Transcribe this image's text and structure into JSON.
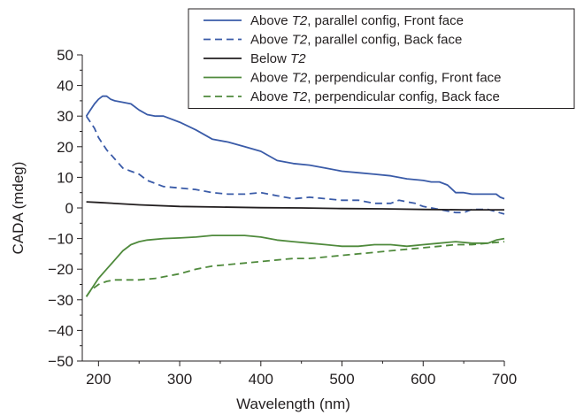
{
  "chart_data": {
    "type": "line",
    "title": "",
    "xlabel": "Wavelength (nm)",
    "ylabel": "CADA (mdeg)",
    "xlim": [
      180,
      700
    ],
    "ylim": [
      -50,
      50
    ],
    "xticks": [
      200,
      300,
      400,
      500,
      600,
      700
    ],
    "yticks": [
      50,
      40,
      30,
      20,
      10,
      0,
      -10,
      -20,
      -30,
      -40,
      -50
    ],
    "ytick_labels": [
      "50",
      "40",
      "30",
      "20",
      "10",
      "0",
      "−10",
      "−20",
      "−30",
      "−40",
      "−50"
    ],
    "grid": false,
    "legend_placement": "top-right",
    "series": [
      {
        "name": "Above T2, parallel config, Front face",
        "name_parts": [
          "Above ",
          "T2",
          ", parallel config, Front face"
        ],
        "color": "#3a5ba8",
        "dash": "solid",
        "x": [
          185,
          190,
          195,
          200,
          205,
          210,
          215,
          220,
          230,
          240,
          250,
          260,
          270,
          280,
          300,
          320,
          340,
          360,
          380,
          400,
          420,
          440,
          460,
          480,
          500,
          520,
          540,
          560,
          580,
          600,
          610,
          620,
          630,
          640,
          650,
          660,
          670,
          680,
          690,
          695,
          700
        ],
        "y": [
          30,
          32,
          34,
          35.5,
          36.5,
          36.5,
          35.5,
          35,
          34.5,
          34,
          32,
          30.5,
          30,
          30,
          28,
          25.5,
          22.5,
          21.5,
          20,
          18.5,
          15.5,
          14.5,
          14,
          13,
          12,
          11.5,
          11,
          10.5,
          9.5,
          9,
          8.5,
          8.5,
          7.5,
          5,
          5,
          4.5,
          4.5,
          4.5,
          4.5,
          3.5,
          3
        ]
      },
      {
        "name": "Above T2, parallel config, Back face",
        "name_parts": [
          "Above ",
          "T2",
          ", parallel config, Back face"
        ],
        "color": "#3a5ba8",
        "dash": "dashed",
        "x": [
          185,
          190,
          195,
          200,
          210,
          220,
          230,
          240,
          250,
          260,
          270,
          280,
          300,
          320,
          340,
          360,
          380,
          400,
          420,
          440,
          460,
          480,
          500,
          520,
          540,
          560,
          570,
          580,
          590,
          600,
          620,
          640,
          650,
          660,
          680,
          700
        ],
        "y": [
          30,
          28,
          26,
          23,
          19,
          16,
          13,
          12,
          11,
          9,
          8,
          7,
          6.5,
          6,
          5,
          4.5,
          4.5,
          5,
          4,
          3,
          3.5,
          3,
          2.5,
          2.5,
          1.5,
          1.5,
          2.5,
          2,
          1.5,
          0.5,
          -0.5,
          -1.5,
          -1.5,
          -0.5,
          -0.5,
          -2
        ]
      },
      {
        "name": "Below T2",
        "name_parts": [
          "Below ",
          "T2",
          ""
        ],
        "color": "#231f20",
        "dash": "solid",
        "x": [
          185,
          200,
          250,
          300,
          350,
          400,
          450,
          500,
          550,
          600,
          650,
          700
        ],
        "y": [
          2,
          1.8,
          1,
          0.5,
          0.3,
          0.1,
          0,
          -0.2,
          -0.3,
          -0.5,
          -0.6,
          -0.6
        ]
      },
      {
        "name": "Above T2, perpendicular config, Front face",
        "name_parts": [
          "Above ",
          "T2",
          ", perpendicular config, Front face"
        ],
        "color": "#4f8a3c",
        "dash": "solid",
        "x": [
          185,
          190,
          200,
          210,
          220,
          230,
          240,
          250,
          260,
          280,
          300,
          320,
          340,
          360,
          380,
          400,
          420,
          440,
          460,
          480,
          500,
          520,
          540,
          560,
          580,
          600,
          620,
          640,
          660,
          680,
          690,
          700
        ],
        "y": [
          -29,
          -27,
          -23,
          -20,
          -17,
          -14,
          -12,
          -11,
          -10.5,
          -10,
          -9.8,
          -9.5,
          -9,
          -9,
          -9,
          -9.5,
          -10.5,
          -11,
          -11.5,
          -12,
          -12.5,
          -12.5,
          -12,
          -12,
          -12.5,
          -12,
          -11.5,
          -11,
          -11.5,
          -11.5,
          -10.5,
          -10
        ]
      },
      {
        "name": "Above T2, perpendicular config, Back face",
        "name_parts": [
          "Above ",
          "T2",
          ", perpendicular config, Back face"
        ],
        "color": "#4f8a3c",
        "dash": "dashed",
        "x": [
          185,
          190,
          200,
          210,
          220,
          230,
          250,
          270,
          280,
          300,
          320,
          340,
          360,
          380,
          400,
          420,
          440,
          460,
          480,
          500,
          520,
          540,
          560,
          580,
          600,
          620,
          640,
          660,
          680,
          700
        ],
        "y": [
          -29,
          -27,
          -25,
          -24,
          -23.5,
          -23.5,
          -23.5,
          -23,
          -22.5,
          -21.5,
          -20,
          -19,
          -18.5,
          -18,
          -17.5,
          -17,
          -16.5,
          -16.5,
          -16,
          -15.5,
          -15,
          -14.5,
          -14,
          -13.5,
          -13,
          -12.5,
          -12,
          -12,
          -11.5,
          -11
        ]
      }
    ]
  }
}
